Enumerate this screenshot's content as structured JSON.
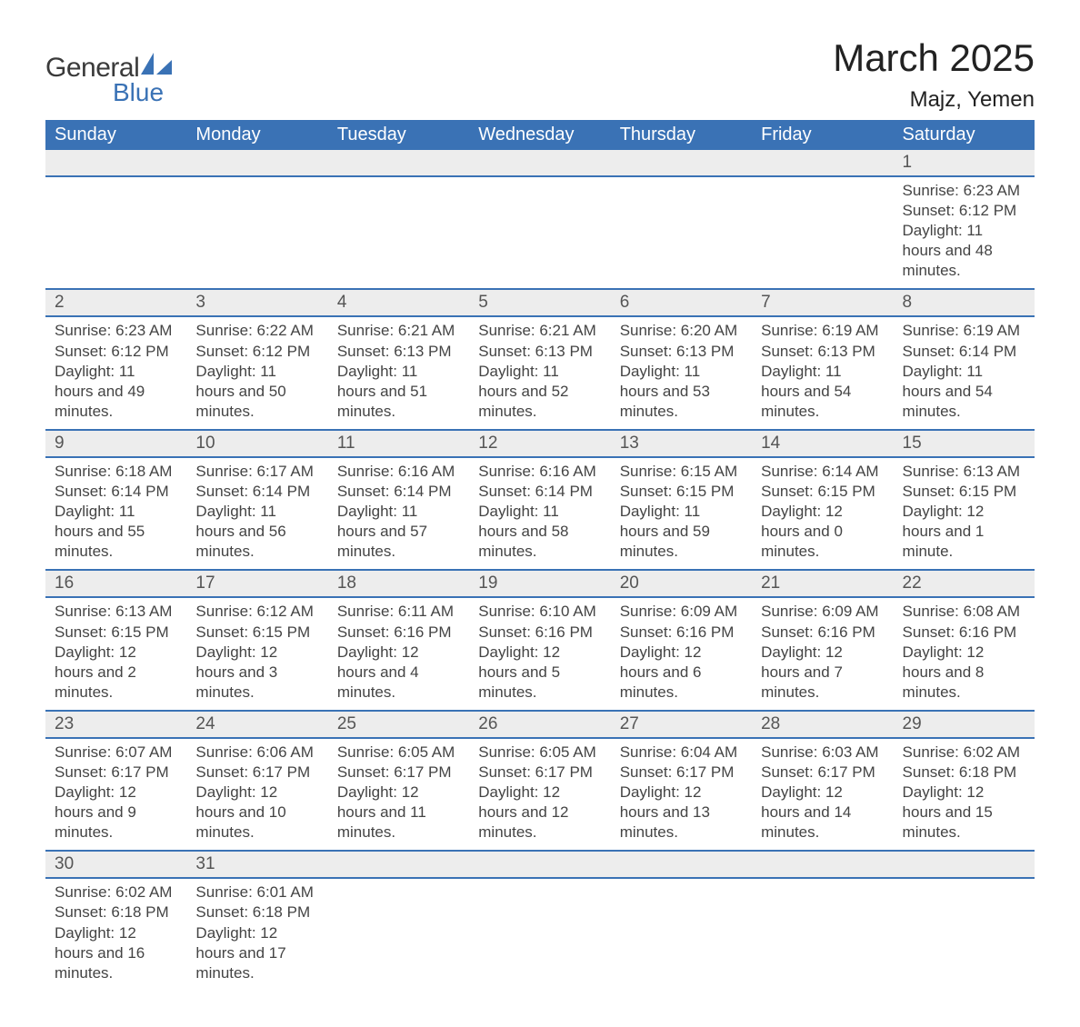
{
  "brand": {
    "name1": "General",
    "name2": "Blue",
    "shape_color": "#3a72b5",
    "text_color": "#3a3a3a"
  },
  "title": "March 2025",
  "location": "Majz, Yemen",
  "header_bg": "#3a72b5",
  "header_fg": "#ffffff",
  "daynum_bg": "#ededed",
  "row_border": "#3a72b5",
  "text_color": "#444444",
  "columns": [
    "Sunday",
    "Monday",
    "Tuesday",
    "Wednesday",
    "Thursday",
    "Friday",
    "Saturday"
  ],
  "label_sunrise": "Sunrise",
  "label_sunset": "Sunset",
  "label_daylight": "Daylight",
  "weeks": [
    [
      null,
      null,
      null,
      null,
      null,
      null,
      {
        "n": "1",
        "sunrise": "6:23 AM",
        "sunset": "6:12 PM",
        "daylight": "11 hours and 48 minutes."
      }
    ],
    [
      {
        "n": "2",
        "sunrise": "6:23 AM",
        "sunset": "6:12 PM",
        "daylight": "11 hours and 49 minutes."
      },
      {
        "n": "3",
        "sunrise": "6:22 AM",
        "sunset": "6:12 PM",
        "daylight": "11 hours and 50 minutes."
      },
      {
        "n": "4",
        "sunrise": "6:21 AM",
        "sunset": "6:13 PM",
        "daylight": "11 hours and 51 minutes."
      },
      {
        "n": "5",
        "sunrise": "6:21 AM",
        "sunset": "6:13 PM",
        "daylight": "11 hours and 52 minutes."
      },
      {
        "n": "6",
        "sunrise": "6:20 AM",
        "sunset": "6:13 PM",
        "daylight": "11 hours and 53 minutes."
      },
      {
        "n": "7",
        "sunrise": "6:19 AM",
        "sunset": "6:13 PM",
        "daylight": "11 hours and 54 minutes."
      },
      {
        "n": "8",
        "sunrise": "6:19 AM",
        "sunset": "6:14 PM",
        "daylight": "11 hours and 54 minutes."
      }
    ],
    [
      {
        "n": "9",
        "sunrise": "6:18 AM",
        "sunset": "6:14 PM",
        "daylight": "11 hours and 55 minutes."
      },
      {
        "n": "10",
        "sunrise": "6:17 AM",
        "sunset": "6:14 PM",
        "daylight": "11 hours and 56 minutes."
      },
      {
        "n": "11",
        "sunrise": "6:16 AM",
        "sunset": "6:14 PM",
        "daylight": "11 hours and 57 minutes."
      },
      {
        "n": "12",
        "sunrise": "6:16 AM",
        "sunset": "6:14 PM",
        "daylight": "11 hours and 58 minutes."
      },
      {
        "n": "13",
        "sunrise": "6:15 AM",
        "sunset": "6:15 PM",
        "daylight": "11 hours and 59 minutes."
      },
      {
        "n": "14",
        "sunrise": "6:14 AM",
        "sunset": "6:15 PM",
        "daylight": "12 hours and 0 minutes."
      },
      {
        "n": "15",
        "sunrise": "6:13 AM",
        "sunset": "6:15 PM",
        "daylight": "12 hours and 1 minute."
      }
    ],
    [
      {
        "n": "16",
        "sunrise": "6:13 AM",
        "sunset": "6:15 PM",
        "daylight": "12 hours and 2 minutes."
      },
      {
        "n": "17",
        "sunrise": "6:12 AM",
        "sunset": "6:15 PM",
        "daylight": "12 hours and 3 minutes."
      },
      {
        "n": "18",
        "sunrise": "6:11 AM",
        "sunset": "6:16 PM",
        "daylight": "12 hours and 4 minutes."
      },
      {
        "n": "19",
        "sunrise": "6:10 AM",
        "sunset": "6:16 PM",
        "daylight": "12 hours and 5 minutes."
      },
      {
        "n": "20",
        "sunrise": "6:09 AM",
        "sunset": "6:16 PM",
        "daylight": "12 hours and 6 minutes."
      },
      {
        "n": "21",
        "sunrise": "6:09 AM",
        "sunset": "6:16 PM",
        "daylight": "12 hours and 7 minutes."
      },
      {
        "n": "22",
        "sunrise": "6:08 AM",
        "sunset": "6:16 PM",
        "daylight": "12 hours and 8 minutes."
      }
    ],
    [
      {
        "n": "23",
        "sunrise": "6:07 AM",
        "sunset": "6:17 PM",
        "daylight": "12 hours and 9 minutes."
      },
      {
        "n": "24",
        "sunrise": "6:06 AM",
        "sunset": "6:17 PM",
        "daylight": "12 hours and 10 minutes."
      },
      {
        "n": "25",
        "sunrise": "6:05 AM",
        "sunset": "6:17 PM",
        "daylight": "12 hours and 11 minutes."
      },
      {
        "n": "26",
        "sunrise": "6:05 AM",
        "sunset": "6:17 PM",
        "daylight": "12 hours and 12 minutes."
      },
      {
        "n": "27",
        "sunrise": "6:04 AM",
        "sunset": "6:17 PM",
        "daylight": "12 hours and 13 minutes."
      },
      {
        "n": "28",
        "sunrise": "6:03 AM",
        "sunset": "6:17 PM",
        "daylight": "12 hours and 14 minutes."
      },
      {
        "n": "29",
        "sunrise": "6:02 AM",
        "sunset": "6:18 PM",
        "daylight": "12 hours and 15 minutes."
      }
    ],
    [
      {
        "n": "30",
        "sunrise": "6:02 AM",
        "sunset": "6:18 PM",
        "daylight": "12 hours and 16 minutes."
      },
      {
        "n": "31",
        "sunrise": "6:01 AM",
        "sunset": "6:18 PM",
        "daylight": "12 hours and 17 minutes."
      },
      null,
      null,
      null,
      null,
      null
    ]
  ]
}
